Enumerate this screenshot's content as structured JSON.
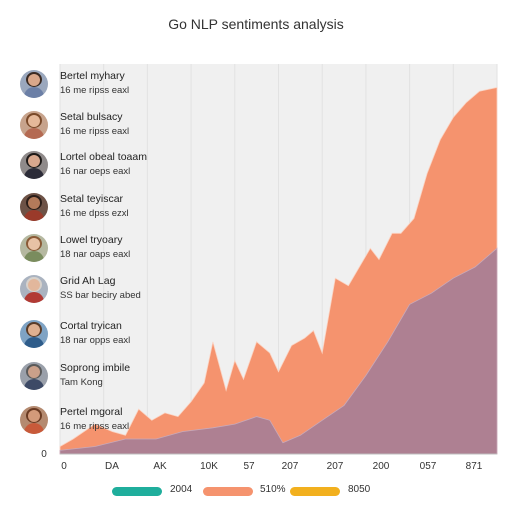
{
  "title": "Go NLP sentiments analysis",
  "people": [
    {
      "name": "Bertel myhary",
      "sub": "16 me ripss eaxl",
      "skin": "#d9a78a",
      "hair": "#3a2a22",
      "shirt": "#6b7fa6",
      "bg": "#9aa7bd"
    },
    {
      "name": "Setal bulsacy",
      "sub": "16 me ripss eaxl",
      "skin": "#e5b99a",
      "hair": "#7a4a2a",
      "shirt": "#b46a52",
      "bg": "#c7a38c"
    },
    {
      "name": "Lortel obeal toaam",
      "sub": "16 nar oeps eaxl",
      "skin": "#d8a88e",
      "hair": "#1e1a18",
      "shirt": "#2c2c38",
      "bg": "#8f8a8a"
    },
    {
      "name": "Setal teyiscar",
      "sub": "16 me dpss ezxl",
      "skin": "#b37a5a",
      "hair": "#2a1d18",
      "shirt": "#9a3a2a",
      "bg": "#6d5246"
    },
    {
      "name": "Lowel tryoary",
      "sub": "18 nar oaps eaxl",
      "skin": "#e8c2a5",
      "hair": "#8a5a36",
      "shirt": "#7a8c5e",
      "bg": "#b5b8a0"
    },
    {
      "name": "Grid Ah Lag",
      "sub": "SS bar beciry abed",
      "skin": "#e2b79c",
      "hair": "#d7d2cc",
      "shirt": "#b23a34",
      "bg": "#aab3c0"
    },
    {
      "name": "Cortal tryican",
      "sub": "18 nar opps eaxl",
      "skin": "#dfb090",
      "hair": "#5a3c28",
      "shirt": "#2e5c8a",
      "bg": "#7fa3c4"
    },
    {
      "name": "Soprong imbile",
      "sub": "Tam Kong",
      "skin": "#caa08a",
      "hair": "#5a5a5a",
      "shirt": "#3d4a66",
      "bg": "#9aa0aa"
    },
    {
      "name": "Pertel mgoral",
      "sub": "16 me ripss eaxl",
      "skin": "#d39a7a",
      "hair": "#6a3a22",
      "shirt": "#c85a3a",
      "bg": "#b48a70"
    }
  ],
  "chart_data": {
    "type": "area",
    "title": "Go NLP sentiments analysis",
    "xlabel": "",
    "ylabel": "",
    "x_tick_labels": [
      "0",
      "DA",
      "AK",
      "10K",
      "57",
      "207",
      "207",
      "200",
      "057",
      "871"
    ],
    "y_tick_labels": [
      "0"
    ],
    "x_range": [
      0,
      100
    ],
    "y_range": [
      0,
      100
    ],
    "grid": true,
    "stacked": false,
    "series": [
      {
        "color": "#f5936e",
        "x": [
          0,
          3,
          8,
          12,
          15,
          18,
          21,
          24,
          27,
          30,
          33,
          35,
          38,
          40,
          42,
          45,
          48,
          50,
          53,
          56,
          58,
          60,
          63,
          66,
          68,
          71,
          73,
          76,
          78,
          81,
          84,
          87,
          90,
          93,
          96,
          100
        ],
        "y": [
          2,
          4,
          8,
          6,
          5,
          12,
          9,
          11,
          10,
          14,
          19,
          30,
          17,
          25,
          20,
          30,
          27,
          22,
          29,
          31,
          33,
          27,
          47,
          45,
          49,
          55,
          52,
          59,
          59,
          63,
          75,
          84,
          90,
          94,
          97,
          98
        ]
      },
      {
        "color": "#a77e95",
        "x": [
          0,
          8,
          15,
          22,
          28,
          35,
          40,
          45,
          48,
          51,
          55,
          60,
          65,
          70,
          75,
          80,
          85,
          90,
          95,
          100
        ],
        "y": [
          1,
          2,
          4,
          4,
          6,
          7,
          8,
          10,
          9,
          3,
          5,
          9,
          13,
          21,
          30,
          40,
          43,
          47,
          50,
          55
        ]
      }
    ],
    "legend": {
      "position": "bottom",
      "entries": [
        {
          "label": "2004",
          "color": "#1fae9c"
        },
        {
          "label": "510%",
          "color": "#f5936e"
        },
        {
          "label": "8050",
          "color": "#f2b01e"
        }
      ]
    }
  }
}
